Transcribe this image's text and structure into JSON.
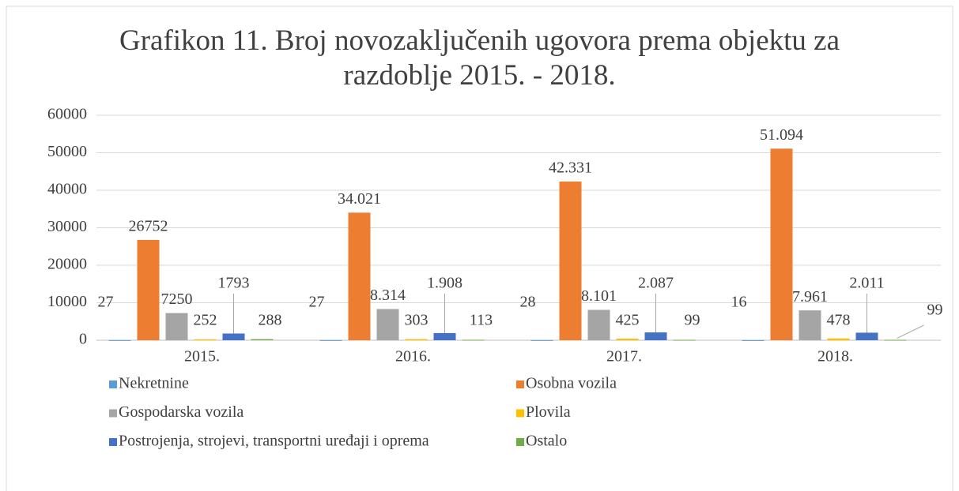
{
  "chart_data": {
    "type": "bar",
    "title": "Grafikon 11. Broj novozaključenih ugovora prema objektu za razdoblje 2015. - 2018.",
    "categories": [
      "2015.",
      "2016.",
      "2017.",
      "2018."
    ],
    "series": [
      {
        "name": "Nekretnine",
        "color": "#5b9bd5",
        "values": [
          27,
          27,
          28,
          16
        ]
      },
      {
        "name": "Osobna vozila",
        "color": "#ed7d31",
        "values": [
          26752,
          34021,
          42331,
          51094
        ],
        "value_labels": [
          "26752",
          "34.021",
          "42.331",
          "51.094"
        ]
      },
      {
        "name": "Gospodarska vozila",
        "color": "#a5a5a5",
        "values": [
          7250,
          8314,
          8101,
          7961
        ],
        "value_labels": [
          "7250",
          "8.314",
          "8.101",
          "7.961"
        ]
      },
      {
        "name": "Plovila",
        "color": "#ffc000",
        "values": [
          252,
          303,
          425,
          478
        ]
      },
      {
        "name": "Postrojenja, strojevi, transportni uređaji i oprema",
        "color": "#4472c4",
        "values": [
          1793,
          1908,
          2087,
          2011
        ],
        "value_labels": [
          "1793",
          "1.908",
          "2.087",
          "2.011"
        ]
      },
      {
        "name": "Ostalo",
        "color": "#70ad47",
        "values": [
          288,
          113,
          99,
          99
        ]
      }
    ],
    "ylim": [
      0,
      60000
    ],
    "yticks": [
      0,
      10000,
      20000,
      30000,
      40000,
      50000,
      60000
    ],
    "grid": true,
    "legend": "bottom"
  }
}
